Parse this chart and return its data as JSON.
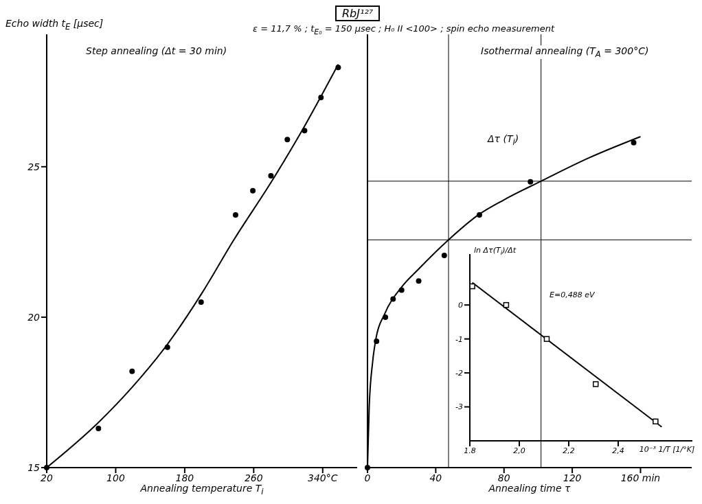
{
  "chart_data": [
    {
      "type": "scatter",
      "title": "RbJ¹²⁷",
      "subtitle": "ε = 11,7 % ; t$_{E₀}$ = 150 µsec ; H₀ II <100> ; spin echo measurement",
      "ylabel": "Echo width t$_{E}$ [µsec]",
      "xlabel": "Annealing temperature T$_{i}$",
      "annotations": [
        "Step annealing (Δt = 30 min)"
      ],
      "xlim": [
        20,
        380
      ],
      "xticks": [
        20,
        100,
        180,
        260,
        {
          "value": 340,
          "label": "340°C"
        }
      ],
      "ylim": [
        15,
        29.4
      ],
      "yticks": [
        15,
        20,
        25
      ],
      "marker": "circle",
      "series": [
        {
          "color": "#000000",
          "x": [
            20,
            80,
            119,
            160,
            199,
            239,
            259,
            280,
            299,
            319,
            338,
            358
          ],
          "values": [
            15.0,
            16.3,
            18.2,
            19.0,
            20.5,
            23.4,
            24.2,
            24.7,
            25.9,
            26.2,
            27.3,
            28.3
          ]
        },
        {
          "type": "line",
          "marker": "none",
          "color": "#000000",
          "x": [
            20,
            80,
            120,
            160,
            200,
            237,
            281,
            320,
            358
          ],
          "values": [
            15.0,
            16.5,
            17.7,
            19.1,
            20.8,
            22.57,
            24.52,
            26.4,
            28.4
          ]
        }
      ]
    },
    {
      "type": "scatter",
      "xlabel": "Annealing time τ",
      "annotations": [
        "Isothermal annealing (T$_{A}$ = 300°C)",
        "Δτ (T$_{i}$)"
      ],
      "xlim": [
        0,
        190
      ],
      "xticks": [
        0,
        40,
        80,
        120,
        {
          "value": 160,
          "label": "160 min"
        }
      ],
      "ylim": [
        15,
        29.4
      ],
      "tick_labels": "x",
      "marker": "circle",
      "ref_lines": [
        {
          "axis": "y",
          "value": 24.52
        },
        {
          "axis": "y",
          "value": 22.57
        },
        {
          "axis": "x",
          "value": 47.5
        },
        {
          "axis": "x",
          "value": 101.7
        }
      ],
      "series": [
        {
          "color": "#000000",
          "x": [
            0,
            5.3,
            10.5,
            15,
            20,
            30,
            45,
            65.6,
            95.5,
            156
          ],
          "values": [
            15.0,
            19.2,
            20.0,
            20.6,
            20.9,
            21.2,
            22.05,
            23.4,
            24.5,
            25.8
          ]
        },
        {
          "type": "line",
          "marker": "none",
          "color": "#000000",
          "x": [
            0,
            1,
            3,
            5,
            10,
            20,
            30,
            47.5,
            65,
            80,
            101.7,
            130,
            160
          ],
          "values": [
            15.0,
            17.0,
            18.5,
            19.3,
            20.1,
            21.0,
            21.6,
            22.57,
            23.4,
            23.9,
            24.52,
            25.3,
            26.0
          ]
        }
      ]
    },
    {
      "type": "scatter",
      "ylabel": "ln Δτ(T$_{i}$)/Δt",
      "xlabel": "10⁻³  1/T [1/°K]",
      "annotations": [
        "E=0,488 eV"
      ],
      "xlim": [
        1.8,
        2.7
      ],
      "xticks": [
        {
          "value": 1.8,
          "label": "1.8"
        },
        {
          "value": 2.0,
          "label": "2,0"
        },
        {
          "value": 2.2,
          "label": "2,2"
        },
        {
          "value": 2.4,
          "label": "2,4"
        }
      ],
      "ylim": [
        -4,
        1.5
      ],
      "yticks": [
        0,
        -1,
        -2,
        -3
      ],
      "marker": "square",
      "series": [
        {
          "color": "#000000",
          "x": [
            1.81,
            1.947,
            2.111,
            2.309,
            2.551
          ],
          "values": [
            0.55,
            0.0,
            -1.0,
            -2.33,
            -3.43
          ]
        },
        {
          "type": "line",
          "marker": "none",
          "color": "#000000",
          "x": [
            1.81,
            2.576
          ],
          "values": [
            0.66,
            -3.59
          ]
        }
      ]
    }
  ]
}
